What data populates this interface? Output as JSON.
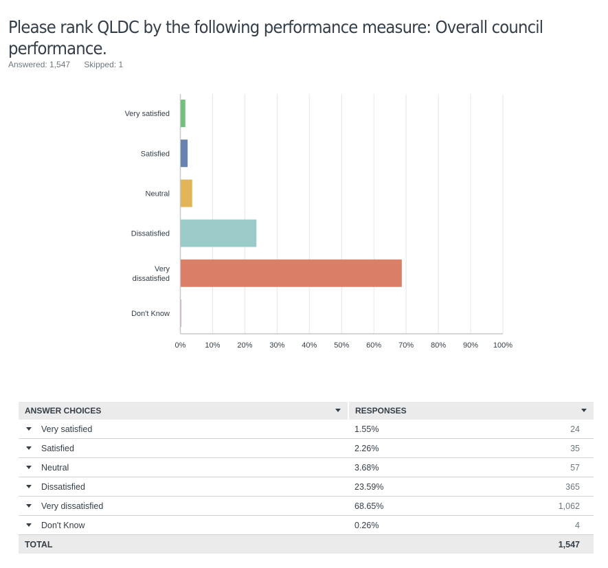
{
  "question": {
    "title": "Please rank QLDC by the following performance measure: Overall council performance.",
    "answered_label": "Answered: 1,547",
    "skipped_label": "Skipped: 1"
  },
  "chart_data": {
    "type": "bar",
    "orientation": "horizontal",
    "title": "",
    "xlabel": "",
    "ylabel": "",
    "categories": [
      "Very satisfied",
      "Satisfied",
      "Neutral",
      "Dissatisfied",
      "Very dissatisfied",
      "Don't Know"
    ],
    "category_lines": [
      [
        "Very satisfied"
      ],
      [
        "Satisfied"
      ],
      [
        "Neutral"
      ],
      [
        "Dissatisfied"
      ],
      [
        "Very",
        "dissatisfied"
      ],
      [
        "Don't Know"
      ]
    ],
    "values": [
      1.55,
      2.26,
      3.68,
      23.59,
      68.65,
      0.26
    ],
    "colors": [
      "#73c17d",
      "#6a82ae",
      "#e2b556",
      "#9bcbc9",
      "#db7f66",
      "#bd87b8"
    ],
    "xlim": [
      0,
      100
    ],
    "ticks": [
      0,
      10,
      20,
      30,
      40,
      50,
      60,
      70,
      80,
      90,
      100
    ],
    "tick_labels": [
      "0%",
      "10%",
      "20%",
      "30%",
      "40%",
      "50%",
      "60%",
      "70%",
      "80%",
      "90%",
      "100%"
    ],
    "grid": true,
    "legend": "none"
  },
  "table": {
    "headers": [
      "ANSWER CHOICES",
      "RESPONSES"
    ],
    "rows": [
      {
        "choice": "Very satisfied",
        "percent": "1.55%",
        "count": "24"
      },
      {
        "choice": "Satisfied",
        "percent": "2.26%",
        "count": "35"
      },
      {
        "choice": "Neutral",
        "percent": "3.68%",
        "count": "57"
      },
      {
        "choice": "Dissatisfied",
        "percent": "23.59%",
        "count": "365"
      },
      {
        "choice": "Very dissatisfied",
        "percent": "68.65%",
        "count": "1,062"
      },
      {
        "choice": "Don't Know",
        "percent": "0.26%",
        "count": "4"
      }
    ],
    "total_label": "TOTAL",
    "total_count": "1,547"
  }
}
